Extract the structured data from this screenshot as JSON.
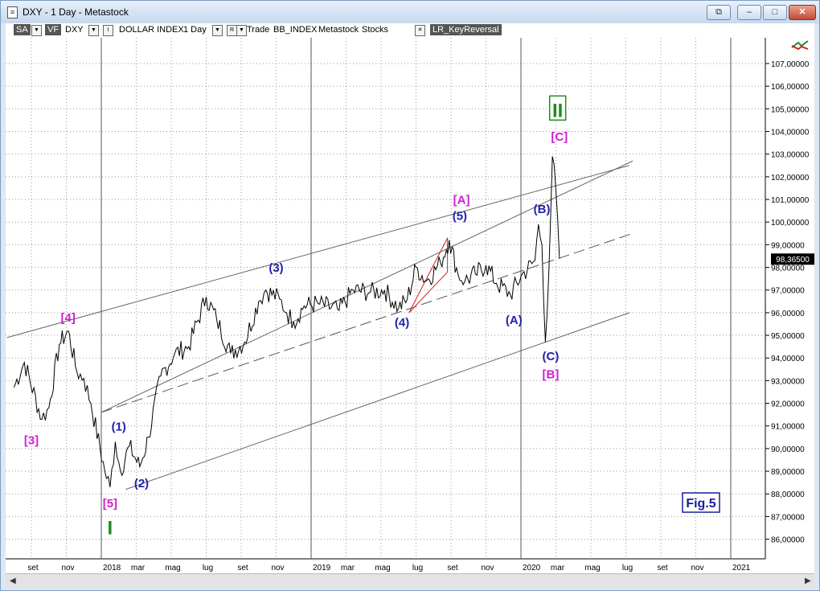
{
  "window": {
    "title": "DXY - 1 Day - Metastock",
    "buttons": {
      "restore": "⧉",
      "minimize": "–",
      "maximize": "□",
      "close": "✕"
    }
  },
  "toolbar": {
    "sa": "SA",
    "vf": "VF",
    "symbol": "DXY",
    "dd_arrow": "▼",
    "i_button": "I",
    "security": "DOLLAR INDEX",
    "period": "1 Day",
    "r_button": "R",
    "trade": "Trade",
    "source": "BB_INDEX",
    "provider": "Metastock",
    "asset": "Stocks",
    "close_x": "✕",
    "indicator": "LR_KeyReversal"
  },
  "chart_data": {
    "type": "line",
    "title": "",
    "xlabel": "",
    "ylabel": "",
    "ylim": [
      85,
      108
    ],
    "y_ticks": [
      "107,00000",
      "106,00000",
      "105,00000",
      "104,00000",
      "103,00000",
      "102,00000",
      "101,00000",
      "100,00000",
      "99,00000",
      "98,00000",
      "97,00000",
      "96,00000",
      "95,00000",
      "94,00000",
      "93,00000",
      "92,00000",
      "91,00000",
      "90,00000",
      "89,00000",
      "88,00000",
      "87,00000",
      "86,00000"
    ],
    "x_ticks": [
      "set",
      "nov",
      "2018",
      "mar",
      "mag",
      "lug",
      "set",
      "nov",
      "2019",
      "mar",
      "mag",
      "lug",
      "set",
      "nov",
      "2020",
      "mar",
      "mag",
      "lug",
      "set",
      "nov",
      "2021"
    ],
    "x_tick_pos": [
      0.5,
      1.5,
      2.5,
      3.5,
      4.5,
      5.5,
      6.5,
      7.5,
      8.5,
      9.5,
      10.5,
      11.5,
      12.5,
      13.5,
      14.5,
      15.5,
      16.5,
      17.5,
      18.5,
      19.5,
      20.5
    ],
    "last_price": "98,36500",
    "last_value": 98.365,
    "anchors": [
      [
        0,
        92.7
      ],
      [
        0.3,
        93.8
      ],
      [
        0.8,
        91.3
      ],
      [
        1.0,
        91.8
      ],
      [
        1.3,
        94.6
      ],
      [
        1.55,
        95.2
      ],
      [
        1.8,
        93.4
      ],
      [
        2.0,
        93.1
      ],
      [
        2.2,
        92.0
      ],
      [
        2.6,
        89.0
      ],
      [
        2.75,
        88.3
      ],
      [
        2.9,
        90.3
      ],
      [
        3.05,
        89.0
      ],
      [
        3.3,
        90.1
      ],
      [
        3.6,
        89.2
      ],
      [
        3.85,
        90.5
      ],
      [
        4.2,
        93.2
      ],
      [
        4.6,
        94.2
      ],
      [
        5.0,
        94.5
      ],
      [
        5.5,
        96.7
      ],
      [
        5.8,
        95.7
      ],
      [
        6.2,
        94.2
      ],
      [
        6.6,
        94.7
      ],
      [
        7.0,
        96.5
      ],
      [
        7.2,
        97.0
      ],
      [
        7.6,
        96.6
      ],
      [
        7.8,
        96.0
      ],
      [
        8.0,
        95.6
      ],
      [
        8.3,
        96.3
      ],
      [
        8.7,
        96.4
      ],
      [
        9.3,
        96.1
      ],
      [
        9.7,
        97.0
      ],
      [
        10.2,
        96.9
      ],
      [
        10.6,
        97.0
      ],
      [
        11.0,
        96.2
      ],
      [
        11.25,
        96.6
      ],
      [
        11.5,
        98.0
      ],
      [
        11.8,
        97.4
      ],
      [
        12.2,
        98.2
      ],
      [
        12.45,
        99.2
      ],
      [
        12.7,
        97.7
      ],
      [
        12.9,
        97.4
      ],
      [
        13.2,
        97.7
      ],
      [
        13.5,
        98.1
      ],
      [
        13.8,
        97.3
      ],
      [
        14.2,
        96.8
      ],
      [
        14.5,
        97.6
      ],
      [
        14.9,
        98.3
      ],
      [
        15.0,
        99.9
      ],
      [
        15.1,
        99.0
      ],
      [
        15.2,
        94.7
      ],
      [
        15.3,
        97.9
      ],
      [
        15.4,
        102.9
      ],
      [
        15.5,
        101.4
      ],
      [
        15.6,
        98.4
      ]
    ],
    "overlays": {
      "channel_upper": [
        [
          2.5,
          91.6
        ],
        [
          17.7,
          102.7
        ]
      ],
      "channel_lower": [
        [
          3.2,
          88.2
        ],
        [
          17.6,
          96.0
        ]
      ],
      "midline_upper": [
        [
          -0.2,
          94.9
        ],
        [
          17.6,
          102.5
        ]
      ],
      "midline_dashed": [
        [
          2.5,
          91.6
        ],
        [
          17.7,
          99.5
        ]
      ],
      "triangle": [
        [
          11.3,
          96.0
        ],
        [
          12.4,
          99.3
        ],
        [
          12.4,
          97.8
        ]
      ]
    },
    "annotations": [
      {
        "text": "[3]",
        "x": 0.5,
        "y": 90.2,
        "color": "#d21ed2"
      },
      {
        "text": "[4]",
        "x": 1.55,
        "y": 95.6,
        "color": "#d21ed2"
      },
      {
        "text": "(1)",
        "x": 3.0,
        "y": 90.8,
        "color": "#2222aa"
      },
      {
        "text": "(2)",
        "x": 3.65,
        "y": 88.3,
        "color": "#2222aa"
      },
      {
        "text": "[5]",
        "x": 2.75,
        "y": 87.4,
        "color": "#d21ed2"
      },
      {
        "text": "(3)",
        "x": 7.5,
        "y": 97.8,
        "color": "#2222aa"
      },
      {
        "text": "(4)",
        "x": 11.1,
        "y": 95.4,
        "color": "#2222aa"
      },
      {
        "text": "[A]",
        "x": 12.8,
        "y": 100.8,
        "color": "#d21ed2"
      },
      {
        "text": "(5)",
        "x": 12.75,
        "y": 100.1,
        "color": "#2222aa"
      },
      {
        "text": "(A)",
        "x": 14.3,
        "y": 95.5,
        "color": "#2222aa"
      },
      {
        "text": "(B)",
        "x": 15.1,
        "y": 100.4,
        "color": "#2222aa"
      },
      {
        "text": "(C)",
        "x": 15.35,
        "y": 93.9,
        "color": "#2222aa"
      },
      {
        "text": "[B]",
        "x": 15.35,
        "y": 93.1,
        "color": "#d21ed2"
      },
      {
        "text": "[C]",
        "x": 15.6,
        "y": 103.6,
        "color": "#d21ed2"
      }
    ],
    "wave_marks": [
      {
        "text": "II",
        "x": 15.55,
        "y": 105.0
      },
      {
        "text": "I",
        "x": 2.75,
        "y": 86.5
      }
    ],
    "figure_label": "Fig.5"
  }
}
